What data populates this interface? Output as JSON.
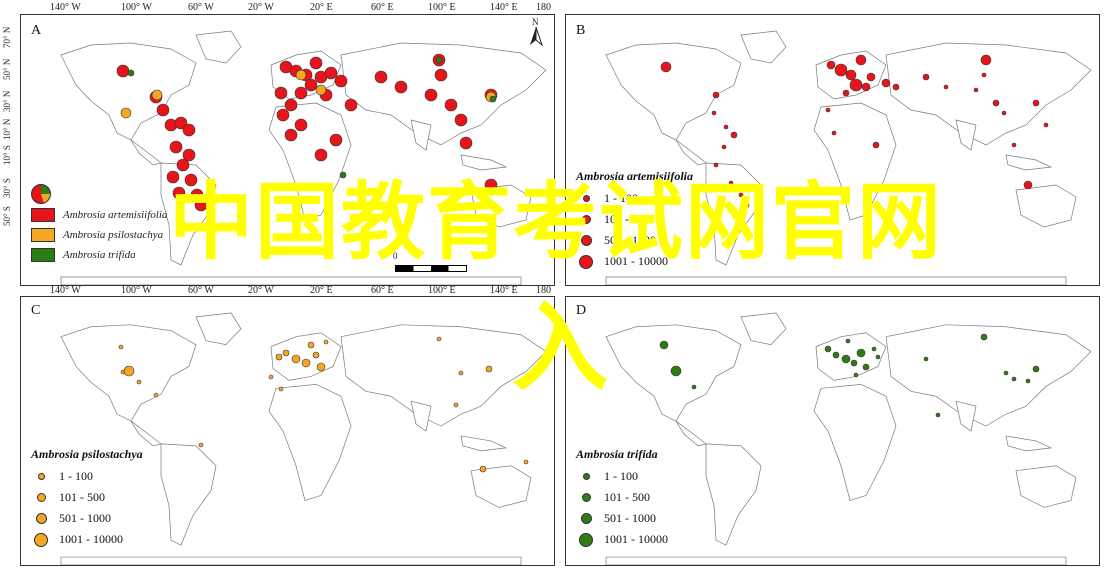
{
  "panels": {
    "a": {
      "label": "A"
    },
    "b": {
      "label": "B"
    },
    "c": {
      "label": "C"
    },
    "d": {
      "label": "D"
    }
  },
  "top_axis": [
    "140° W",
    "100° W",
    "60° W",
    "20° W",
    "20° E",
    "60° E",
    "100° E",
    "140° E",
    "180"
  ],
  "bottom_axis": [
    "140° W",
    "100° W",
    "60° W",
    "20° W",
    "20° E",
    "60° E",
    "100° E",
    "140° E",
    "180"
  ],
  "left_axis": [
    "70° N",
    "50° N",
    "30° N",
    "10° N",
    "10° S",
    "30° S",
    "50° S"
  ],
  "north_arrow": "N",
  "scale_zero": "0",
  "pie_legend": {
    "items": [
      {
        "label": "Ambrosia artemisiifolia",
        "color": "#e8141b"
      },
      {
        "label": "Ambrosia psilostachya",
        "color": "#f5a623"
      },
      {
        "label": "Ambrosia trifida",
        "color": "#2e7d14"
      }
    ]
  },
  "legend_b": {
    "title": "Ambrosia artemisiifolia",
    "color": "#e8141b",
    "classes": [
      "1 - 100",
      "101 - 500",
      "501 - 1000",
      "1001 - 10000"
    ]
  },
  "legend_c": {
    "title": "Ambrosia psilostachya",
    "color": "#f5a623",
    "classes": [
      "1 - 100",
      "101 - 500",
      "501 - 1000",
      "1001 - 10000"
    ]
  },
  "legend_d": {
    "title": "Ambrosia trifida",
    "color": "#2e7d14",
    "classes": [
      "1 - 100",
      "101 - 500",
      "501 - 1000",
      "1001 - 10000"
    ]
  },
  "watermark": "中国教育考试网官网",
  "watermark2": "入"
}
